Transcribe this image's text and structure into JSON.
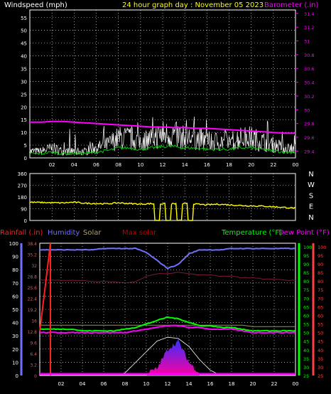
{
  "header": {
    "windspeed_label": "Windspeed (mph)",
    "title": "24 hour graph day : November 05 2023",
    "barometer_label": "Barometer (.in)"
  },
  "colors": {
    "background": "#000000",
    "grid": "#ffffff",
    "wind_speed": "#ffffff",
    "wind_gust": "#ffffff",
    "wind_avg": "#00d000",
    "barometer": "#ff00ff",
    "direction": "#ffff00",
    "rainfall": "#ff2020",
    "humidity": "#7070ff",
    "solar": "#d8d8d8",
    "max_solar": "#c00000",
    "temperature": "#00ff00",
    "dew_point": "#ff00ff",
    "indoor_humidity": "#7a1a3a",
    "label_left_panel3": "#d06060"
  },
  "chart_data": [
    {
      "type": "line",
      "name": "wind-barometer",
      "x_tick_labels": [
        "02",
        "04",
        "06",
        "08",
        "10",
        "12",
        "14",
        "16",
        "18",
        "20",
        "22",
        "00"
      ],
      "y_left_ticks": [
        "0",
        "5",
        "10",
        "15",
        "20",
        "25",
        "30",
        "35",
        "40",
        "45",
        "50",
        "55"
      ],
      "y_right_ticks": [
        "29.4",
        "29.6",
        "29.8",
        "30",
        "30.2",
        "30.4",
        "30.6",
        "30.8",
        "31",
        "31.2",
        "31.4"
      ],
      "ylim_left": [
        0,
        58
      ],
      "ylim_right": [
        29.3,
        31.45
      ],
      "xlim": [
        0,
        24
      ],
      "grid": true,
      "x": [
        0,
        1,
        2,
        3,
        4,
        5,
        6,
        7,
        8,
        9,
        10,
        11,
        12,
        13,
        14,
        15,
        16,
        17,
        18,
        19,
        20,
        21,
        22,
        23,
        24
      ],
      "series": [
        {
          "name": "Windspeed (mph)",
          "axis": "left",
          "values": [
            2,
            2,
            3,
            2,
            2,
            2,
            3,
            4,
            6,
            6,
            5,
            6,
            7,
            7,
            6,
            6,
            5,
            5,
            5,
            6,
            6,
            5,
            4,
            3,
            3
          ]
        },
        {
          "name": "Barometer (.in)",
          "axis": "right",
          "values": [
            29.82,
            29.82,
            29.83,
            29.83,
            29.82,
            29.81,
            29.8,
            29.79,
            29.78,
            29.77,
            29.76,
            29.75,
            29.75,
            29.74,
            29.74,
            29.73,
            29.73,
            29.72,
            29.71,
            29.7,
            29.69,
            29.68,
            29.67,
            29.66,
            29.66
          ]
        }
      ]
    },
    {
      "type": "line",
      "name": "wind-direction",
      "y_left_ticks": [
        "0",
        "90",
        "180",
        "270",
        "360"
      ],
      "y_right_ticks": [
        "N",
        "E",
        "S",
        "W",
        "N"
      ],
      "ylim": [
        0,
        360
      ],
      "xlim": [
        0,
        24
      ],
      "grid": true,
      "x": [
        0,
        1,
        2,
        3,
        4,
        5,
        6,
        7,
        8,
        9,
        10,
        11,
        12,
        13,
        14,
        15,
        16,
        17,
        18,
        19,
        20,
        21,
        22,
        23,
        24
      ],
      "series": [
        {
          "name": "Wind direction",
          "values": [
            140,
            138,
            136,
            135,
            140,
            132,
            130,
            128,
            135,
            130,
            125,
            130,
            0,
            130,
            0,
            125,
            120,
            125,
            120,
            115,
            112,
            110,
            105,
            100,
            95
          ]
        }
      ]
    },
    {
      "type": "line",
      "name": "rain-humidity-solar-temp",
      "legend": [
        "Rainfall (.in)",
        "Humidity",
        "Solar",
        "Max solar",
        "Temperature (°F)",
        "Dew Point (°F)"
      ],
      "y_left_ticks": [
        "0",
        "10",
        "20",
        "30",
        "40",
        "50",
        "60",
        "70",
        "80",
        "90",
        "100"
      ],
      "y_rain_ticks": [
        "0",
        "3.2",
        "6.4",
        "9.6",
        "12.8",
        "16",
        "19.2",
        "22.4",
        "25.6",
        "28.8",
        "32",
        "35.2",
        "38.4"
      ],
      "y_temp_ticks": [
        "25",
        "30",
        "35",
        "40",
        "45",
        "50",
        "55",
        "60",
        "65",
        "70",
        "75",
        "80",
        "85",
        "90",
        "95",
        "100"
      ],
      "y_dew_ticks": [
        "25",
        "30",
        "35",
        "40",
        "45",
        "50",
        "55",
        "60",
        "65",
        "70",
        "75",
        "80",
        "85",
        "90",
        "95",
        "100"
      ],
      "xlim": [
        0,
        24
      ],
      "grid": true,
      "x": [
        0,
        1,
        2,
        3,
        4,
        5,
        6,
        7,
        8,
        9,
        10,
        11,
        12,
        13,
        14,
        15,
        16,
        17,
        18,
        19,
        20,
        21,
        22,
        23,
        24
      ],
      "series": [
        {
          "name": "Humidity",
          "axis": "left",
          "values": [
            95,
            95,
            95,
            95,
            95,
            95,
            96,
            96,
            96,
            96,
            93,
            87,
            81,
            84,
            92,
            95,
            95,
            95,
            96,
            96,
            96,
            96,
            96,
            96,
            96
          ]
        },
        {
          "name": "Solar",
          "axis": "left",
          "values": [
            0,
            0,
            0,
            0,
            0,
            0,
            0,
            0,
            0,
            0,
            0,
            3,
            18,
            24,
            8,
            0,
            0,
            0,
            0,
            0,
            0,
            0,
            0,
            0,
            0
          ]
        },
        {
          "name": "Max solar",
          "axis": "left",
          "values": [
            0,
            0,
            0,
            0,
            0,
            0,
            0,
            0,
            2,
            10,
            18,
            26,
            29,
            28,
            22,
            12,
            4,
            0,
            0,
            0,
            0,
            0,
            0,
            0,
            0
          ]
        },
        {
          "name": "Temperature (°F)",
          "axis": "right",
          "values": [
            52,
            52,
            52,
            52,
            51,
            51,
            51,
            51,
            52,
            53,
            55,
            57,
            59,
            58,
            56,
            54,
            54,
            53,
            53,
            52,
            51,
            51,
            51,
            51,
            51
          ]
        },
        {
          "name": "Dew Point (°F)",
          "axis": "right",
          "values": [
            50,
            50,
            50,
            50,
            50,
            50,
            50,
            50,
            50,
            51,
            52,
            53,
            54,
            54,
            53,
            53,
            52,
            52,
            52,
            51,
            50,
            50,
            50,
            50,
            50
          ]
        },
        {
          "name": "Rainfall (.in)",
          "axis": "rain",
          "values": [
            12.8,
            38.4,
            0,
            0,
            0,
            0,
            0,
            0,
            0,
            0,
            0,
            0,
            0,
            0,
            0,
            0,
            0,
            0,
            0,
            0,
            0,
            0,
            0,
            0,
            0
          ]
        }
      ]
    }
  ],
  "panel3_labels": {
    "rainfall": "Rainfall (.in)",
    "humidity": "Humidity",
    "solar": "Solar",
    "max_solar": "Max solar",
    "temperature": "Temperature (°F)",
    "dew_point": "Dew Point (°F)"
  }
}
